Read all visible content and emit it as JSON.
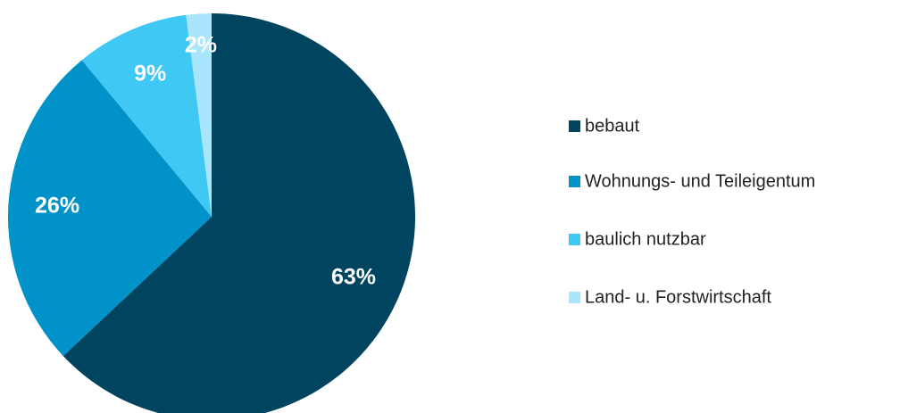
{
  "chart_data": {
    "type": "pie",
    "categories": [
      "bebaut",
      "Wohnungs- und Teileigentum",
      "baulich nutzbar",
      "Land- u. Forstwirtschaft"
    ],
    "values": [
      63,
      26,
      9,
      2
    ],
    "value_labels": [
      "63%",
      "26%",
      "9%",
      "2%"
    ],
    "colors": [
      "#00445f",
      "#0192ca",
      "#3fc8f4",
      "#a9e5fb"
    ],
    "legend": "right"
  }
}
